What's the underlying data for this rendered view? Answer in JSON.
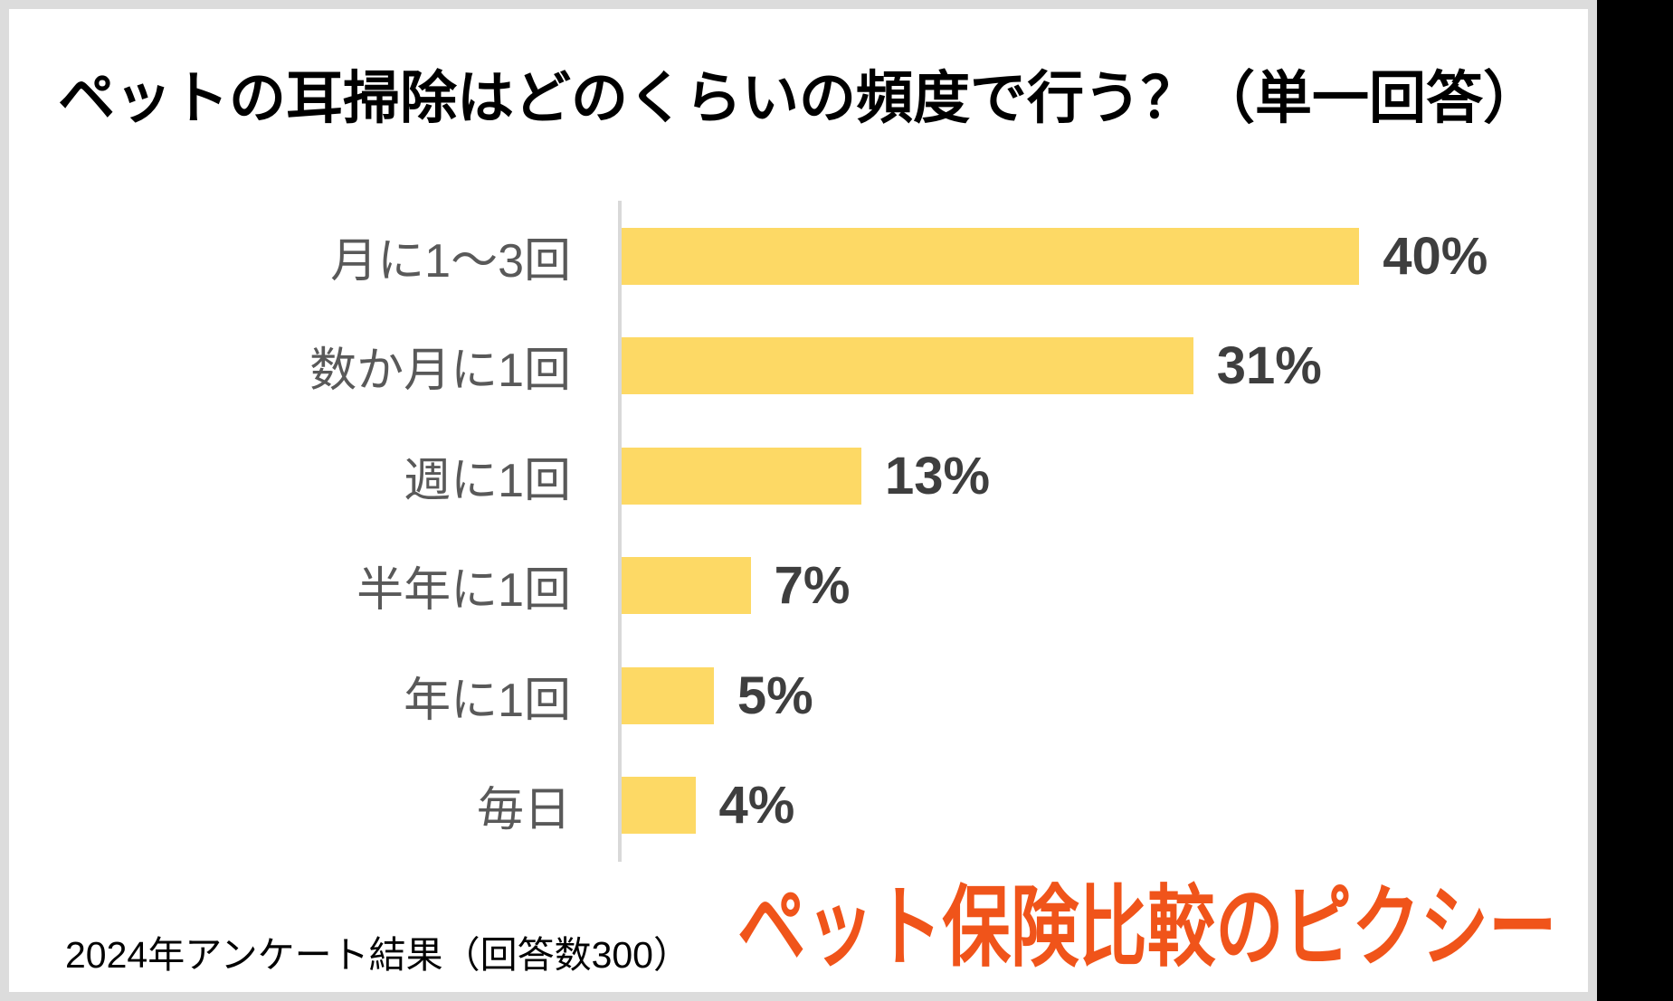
{
  "title": "ペットの耳掃除はどのくらいの頻度で行う？（単一回答）",
  "footer": {
    "note": "2024年アンケート結果（回答数300）"
  },
  "logo": {
    "text": "ペット保険比較のピクシー"
  },
  "colors": {
    "bar": "#fdd965",
    "axis": "#d9d9d9",
    "category_label": "#595959",
    "value_label": "#3e3e3e",
    "frame": "#dcdcdc",
    "logo": "#f0541a",
    "title": "#000000",
    "background_outside": "#000000",
    "card_background": "#ffffff"
  },
  "chart_data": {
    "type": "bar",
    "orientation": "horizontal",
    "title": "ペットの耳掃除はどのくらいの頻度で行う？（単一回答）",
    "categories": [
      "月に1～3回",
      "数か月に1回",
      "週に1回",
      "半年に1回",
      "年に1回",
      "毎日"
    ],
    "values": [
      40,
      31,
      13,
      7,
      5,
      4
    ],
    "value_labels": [
      "40%",
      "31%",
      "13%",
      "7%",
      "5%",
      "4%"
    ],
    "xlabel": "",
    "ylabel": "",
    "xlim": [
      0,
      44
    ],
    "grid": false,
    "legend": false,
    "source_note": "2024年アンケート結果（回答数300）"
  }
}
